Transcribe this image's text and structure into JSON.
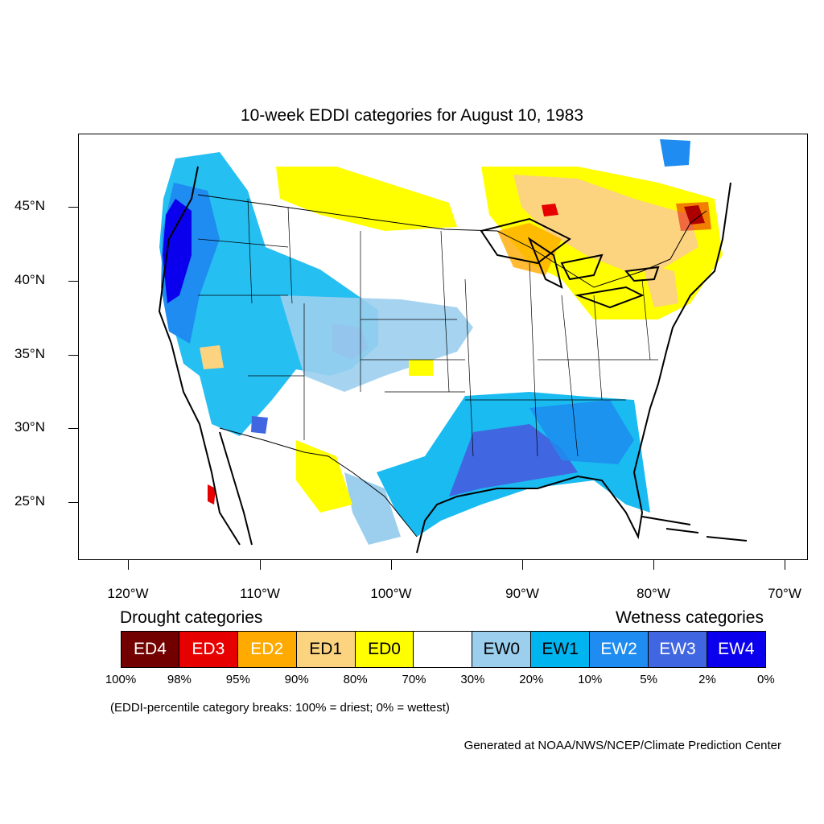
{
  "title": "10-week EDDI categories for August 10, 1983",
  "lat_labels": [
    "45°N",
    "40°N",
    "35°N",
    "30°N",
    "25°N"
  ],
  "lon_labels": [
    "120°W",
    "110°W",
    "100°W",
    "90°W",
    "80°W",
    "70°W"
  ],
  "legend": {
    "drought_heading": "Drought categories",
    "wetness_heading": "Wetness categories",
    "categories": [
      {
        "label": "ED4",
        "color": "#730000",
        "text_color": "#ffffff"
      },
      {
        "label": "ED3",
        "color": "#e60000",
        "text_color": "#ffffff"
      },
      {
        "label": "ED2",
        "color": "#ffaa00",
        "text_color": "#ffffff"
      },
      {
        "label": "ED1",
        "color": "#fcd37f",
        "text_color": "#000000"
      },
      {
        "label": "ED0",
        "color": "#ffff00",
        "text_color": "#000000"
      },
      {
        "label": "",
        "color": "#ffffff",
        "text_color": "#000000"
      },
      {
        "label": "EW0",
        "color": "#9ccfee",
        "text_color": "#000000"
      },
      {
        "label": "EW1",
        "color": "#00b4f0",
        "text_color": "#000000"
      },
      {
        "label": "EW2",
        "color": "#1e8cf0",
        "text_color": "#ffffff"
      },
      {
        "label": "EW3",
        "color": "#4166e1",
        "text_color": "#ffffff"
      },
      {
        "label": "EW4",
        "color": "#0a00ee",
        "text_color": "#ffffff"
      }
    ],
    "percentiles": [
      "100%",
      "98%",
      "95%",
      "90%",
      "80%",
      "70%",
      "30%",
      "20%",
      "10%",
      "5%",
      "2%",
      "0%"
    ]
  },
  "note": "(EDDI-percentile category breaks: 100% = driest; 0% = wettest)",
  "credit": "Generated at NOAA/NWS/NCEP/Climate Prediction Center"
}
